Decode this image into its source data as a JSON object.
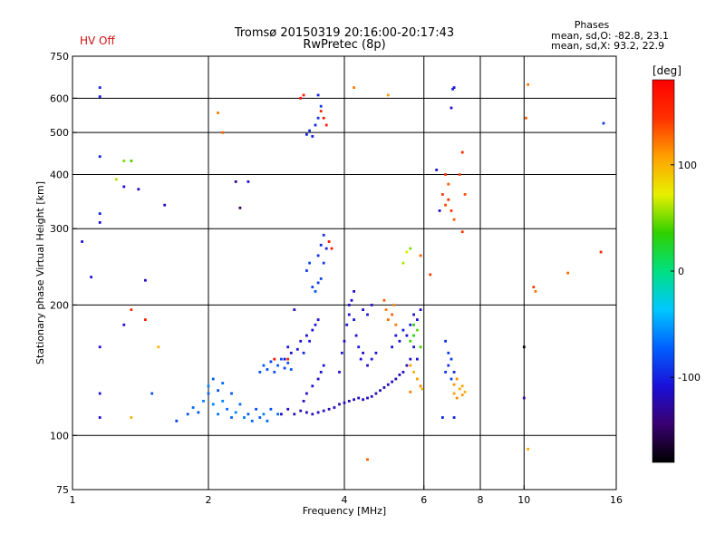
{
  "chart_data": {
    "type": "scatter",
    "title": "Tromsø 20150319 20:16:00-20:17:43",
    "subtitle": "RwPretec (8p)",
    "status": "HV Off",
    "xlabel": "Frequency [MHz]",
    "ylabel": "Stationary phase Virtual Height [km]",
    "x_scale": "log",
    "y_scale": "log",
    "xlim": [
      1,
      16
    ],
    "ylim": [
      75,
      750
    ],
    "x_ticks": [
      1,
      2,
      4,
      6,
      8,
      10,
      16
    ],
    "x_tick_labels": [
      "1",
      "2",
      "4",
      "6",
      "8",
      "10",
      "16"
    ],
    "x_grid": [
      2,
      4,
      6,
      8,
      10
    ],
    "y_ticks": [
      75,
      100,
      200,
      300,
      400,
      500,
      600,
      750
    ],
    "y_tick_labels": [
      "75",
      "100",
      "200",
      "300",
      "400",
      "500",
      "600",
      "750"
    ],
    "y_grid": [
      100,
      200,
      300,
      400,
      500,
      600
    ],
    "grid": true,
    "stats": {
      "heading": "Phases",
      "o_line": "mean, sd,O: -82.8, 23.1",
      "x_line": "mean, sd,X: 93.2, 22.9"
    },
    "colorbar": {
      "unit": "[deg]",
      "range": [
        -180,
        180
      ],
      "ticks": [
        100,
        0,
        -100
      ],
      "tick_labels": [
        "100",
        "0",
        "-100"
      ],
      "colors": [
        "#000000",
        "#3a0070",
        "#1a10d8",
        "#0060ff",
        "#00c8ff",
        "#00e080",
        "#30d000",
        "#e8f000",
        "#ffa000",
        "#ff3000",
        "#ff0000"
      ]
    },
    "series": [
      {
        "points": [
          [
            1.1,
            232,
            -105
          ],
          [
            1.15,
            635,
            -100
          ],
          [
            1.15,
            605,
            -105
          ],
          [
            1.15,
            440,
            -100
          ],
          [
            1.15,
            325,
            -100
          ],
          [
            1.15,
            310,
            -110
          ],
          [
            1.15,
            160,
            -110
          ],
          [
            1.15,
            125,
            -110
          ],
          [
            1.15,
            110,
            -110
          ],
          [
            1.3,
            180,
            -110
          ],
          [
            1.3,
            375,
            -110
          ],
          [
            1.4,
            370,
            -110
          ],
          [
            1.45,
            228,
            -115
          ],
          [
            1.05,
            280,
            -110
          ],
          [
            1.95,
            120,
            -60
          ],
          [
            2.0,
            125,
            -70
          ],
          [
            2.0,
            130,
            -60
          ],
          [
            2.05,
            118,
            -60
          ],
          [
            2.05,
            135,
            -75
          ],
          [
            2.1,
            112,
            -65
          ],
          [
            2.1,
            127,
            -80
          ],
          [
            2.15,
            120,
            -60
          ],
          [
            2.15,
            132,
            -70
          ],
          [
            2.2,
            115,
            -65
          ],
          [
            2.25,
            110,
            -70
          ],
          [
            2.25,
            125,
            -80
          ],
          [
            2.3,
            113,
            -60
          ],
          [
            2.35,
            118,
            -70
          ],
          [
            2.4,
            110,
            -65
          ],
          [
            2.45,
            112,
            -75
          ],
          [
            2.5,
            108,
            -70
          ],
          [
            2.55,
            115,
            -80
          ],
          [
            2.6,
            110,
            -75
          ],
          [
            2.65,
            112,
            -60
          ],
          [
            2.7,
            108,
            -70
          ],
          [
            2.75,
            115,
            -80
          ],
          [
            2.85,
            112,
            -70
          ],
          [
            1.8,
            112,
            -80
          ],
          [
            1.85,
            116,
            -70
          ],
          [
            1.9,
            113,
            -80
          ],
          [
            1.7,
            108,
            -90
          ],
          [
            2.6,
            140,
            -80
          ],
          [
            2.65,
            145,
            -75
          ],
          [
            2.7,
            142,
            -80
          ],
          [
            2.75,
            148,
            -85
          ],
          [
            2.8,
            140,
            -80
          ],
          [
            2.85,
            145,
            -75
          ],
          [
            2.9,
            150,
            -80
          ],
          [
            2.95,
            143,
            -85
          ],
          [
            3.0,
            147,
            -80
          ],
          [
            3.05,
            142,
            -75
          ],
          [
            2.9,
            112,
            -120
          ],
          [
            3.0,
            115,
            -115
          ],
          [
            3.1,
            112,
            -120
          ],
          [
            3.2,
            114,
            -115
          ],
          [
            3.3,
            113,
            -120
          ],
          [
            3.4,
            112,
            -115
          ],
          [
            3.5,
            113,
            -120
          ],
          [
            3.6,
            114,
            -115
          ],
          [
            3.7,
            115,
            -120
          ],
          [
            3.8,
            116,
            -115
          ],
          [
            3.9,
            118,
            -120
          ],
          [
            4.0,
            119,
            -115
          ],
          [
            4.1,
            120,
            -120
          ],
          [
            4.2,
            121,
            -115
          ],
          [
            4.3,
            122,
            -120
          ],
          [
            4.4,
            121,
            -115
          ],
          [
            4.5,
            122,
            -120
          ],
          [
            4.6,
            123,
            -115
          ],
          [
            4.7,
            125,
            -120
          ],
          [
            4.8,
            127,
            -115
          ],
          [
            4.9,
            129,
            -120
          ],
          [
            5.0,
            131,
            -115
          ],
          [
            5.1,
            133,
            -120
          ],
          [
            5.2,
            135,
            -115
          ],
          [
            5.3,
            138,
            -120
          ],
          [
            5.4,
            140,
            -115
          ],
          [
            5.5,
            145,
            -120
          ],
          [
            5.6,
            150,
            -115
          ],
          [
            2.95,
            150,
            -110
          ],
          [
            3.0,
            160,
            -105
          ],
          [
            3.05,
            155,
            -110
          ],
          [
            3.15,
            158,
            -105
          ],
          [
            3.2,
            165,
            -110
          ],
          [
            3.25,
            155,
            -100
          ],
          [
            3.3,
            170,
            -110
          ],
          [
            3.35,
            165,
            -105
          ],
          [
            3.4,
            175,
            -110
          ],
          [
            3.45,
            180,
            -105
          ],
          [
            3.5,
            185,
            -110
          ],
          [
            3.3,
            125,
            -115
          ],
          [
            3.4,
            130,
            -110
          ],
          [
            3.5,
            135,
            -115
          ],
          [
            3.55,
            140,
            -110
          ],
          [
            3.6,
            145,
            -105
          ],
          [
            3.25,
            120,
            -115
          ],
          [
            3.1,
            195,
            -115
          ],
          [
            3.3,
            240,
            -90
          ],
          [
            3.35,
            250,
            -80
          ],
          [
            3.4,
            220,
            -85
          ],
          [
            3.45,
            215,
            -80
          ],
          [
            3.5,
            225,
            -90
          ],
          [
            3.55,
            230,
            -85
          ],
          [
            3.5,
            260,
            -95
          ],
          [
            3.55,
            275,
            -100
          ],
          [
            3.6,
            290,
            -95
          ],
          [
            3.65,
            270,
            -100
          ],
          [
            3.6,
            250,
            -90
          ],
          [
            3.9,
            140,
            -110
          ],
          [
            3.95,
            155,
            -105
          ],
          [
            4.0,
            165,
            -110
          ],
          [
            4.05,
            180,
            -105
          ],
          [
            4.1,
            190,
            -110
          ],
          [
            4.1,
            200,
            -115
          ],
          [
            4.15,
            205,
            -110
          ],
          [
            4.2,
            215,
            -115
          ],
          [
            4.2,
            185,
            -105
          ],
          [
            4.25,
            170,
            -110
          ],
          [
            4.3,
            160,
            -105
          ],
          [
            4.35,
            150,
            -110
          ],
          [
            4.4,
            155,
            -115
          ],
          [
            4.5,
            145,
            -110
          ],
          [
            4.6,
            150,
            -105
          ],
          [
            4.7,
            155,
            -110
          ],
          [
            4.4,
            195,
            -110
          ],
          [
            4.5,
            190,
            -105
          ],
          [
            4.6,
            200,
            -110
          ],
          [
            5.1,
            160,
            -110
          ],
          [
            5.2,
            170,
            -105
          ],
          [
            5.3,
            165,
            -110
          ],
          [
            5.4,
            175,
            -105
          ],
          [
            5.5,
            170,
            -110
          ],
          [
            5.6,
            180,
            -105
          ],
          [
            5.7,
            190,
            -110
          ],
          [
            5.8,
            185,
            -105
          ],
          [
            5.9,
            195,
            -110
          ],
          [
            5.7,
            160,
            -105
          ],
          [
            5.8,
            150,
            -110
          ],
          [
            6.7,
            140,
            -90
          ],
          [
            6.8,
            145,
            -95
          ],
          [
            6.9,
            150,
            -90
          ],
          [
            7.0,
            140,
            -95
          ],
          [
            6.8,
            155,
            -90
          ],
          [
            6.9,
            135,
            -85
          ],
          [
            6.7,
            165,
            -95
          ],
          [
            6.6,
            110,
            -100
          ],
          [
            7.0,
            110,
            -100
          ],
          [
            3.3,
            495,
            -100
          ],
          [
            3.35,
            505,
            -95
          ],
          [
            3.4,
            490,
            -100
          ],
          [
            3.45,
            520,
            -100
          ],
          [
            3.5,
            540,
            -95
          ],
          [
            3.55,
            575,
            -90
          ],
          [
            3.5,
            610,
            -100
          ],
          [
            6.9,
            570,
            -110
          ],
          [
            6.95,
            630,
            -100
          ],
          [
            7.0,
            635,
            -105
          ],
          [
            6.4,
            410,
            -110
          ],
          [
            6.5,
            330,
            -110
          ],
          [
            10.0,
            160,
            -180
          ],
          [
            10.0,
            122,
            -130
          ],
          [
            2.3,
            385,
            -140
          ],
          [
            2.35,
            335,
            -150
          ],
          [
            2.45,
            385,
            -110
          ],
          [
            1.6,
            340,
            -110
          ],
          [
            4.9,
            205,
            130
          ],
          [
            4.95,
            195,
            120
          ],
          [
            5.0,
            185,
            125
          ],
          [
            5.1,
            190,
            130
          ],
          [
            5.2,
            180,
            120
          ],
          [
            5.15,
            200,
            115
          ],
          [
            5.6,
            145,
            110
          ],
          [
            5.7,
            140,
            100
          ],
          [
            5.8,
            135,
            110
          ],
          [
            5.9,
            130,
            115
          ],
          [
            5.95,
            128,
            100
          ],
          [
            5.6,
            126,
            120
          ],
          [
            7.0,
            125,
            110
          ],
          [
            7.1,
            122,
            115
          ],
          [
            7.2,
            128,
            105
          ],
          [
            7.3,
            124,
            110
          ],
          [
            7.4,
            126,
            100
          ],
          [
            7.1,
            135,
            115
          ],
          [
            7.3,
            130,
            105
          ],
          [
            7.0,
            131,
            110
          ],
          [
            5.6,
            165,
            40
          ],
          [
            5.7,
            170,
            30
          ],
          [
            5.8,
            175,
            45
          ],
          [
            5.9,
            160,
            40
          ],
          [
            5.7,
            180,
            35
          ],
          [
            5.4,
            250,
            60
          ],
          [
            5.5,
            265,
            70
          ],
          [
            5.6,
            270,
            50
          ],
          [
            4.5,
            88,
            130
          ],
          [
            4.2,
            635,
            120
          ],
          [
            5.0,
            610,
            110
          ],
          [
            5.9,
            260,
            130
          ],
          [
            6.2,
            235,
            140
          ],
          [
            6.6,
            360,
            140
          ],
          [
            6.7,
            340,
            135
          ],
          [
            6.8,
            350,
            145
          ],
          [
            6.9,
            330,
            140
          ],
          [
            7.0,
            315,
            130
          ],
          [
            7.2,
            400,
            140
          ],
          [
            7.3,
            450,
            150
          ],
          [
            7.4,
            360,
            135
          ],
          [
            6.7,
            400,
            145
          ],
          [
            6.8,
            380,
            130
          ],
          [
            7.3,
            295,
            145
          ],
          [
            3.2,
            600,
            170
          ],
          [
            3.25,
            610,
            160
          ],
          [
            3.55,
            560,
            150
          ],
          [
            3.6,
            540,
            160
          ],
          [
            3.65,
            520,
            155
          ],
          [
            3.7,
            280,
            165
          ],
          [
            3.75,
            270,
            160
          ],
          [
            2.1,
            555,
            120
          ],
          [
            2.15,
            500,
            130
          ],
          [
            10.1,
            540,
            130
          ],
          [
            10.2,
            645,
            120
          ],
          [
            10.5,
            220,
            140
          ],
          [
            10.6,
            215,
            120
          ],
          [
            10.2,
            93,
            100
          ],
          [
            12.5,
            237,
            125
          ],
          [
            14.8,
            265,
            155
          ],
          [
            15.0,
            525,
            -90
          ],
          [
            1.55,
            160,
            100
          ],
          [
            1.3,
            430,
            50
          ],
          [
            1.35,
            430,
            40
          ],
          [
            1.25,
            390,
            60
          ],
          [
            1.35,
            110,
            100
          ],
          [
            2.8,
            150,
            170
          ],
          [
            3.0,
            150,
            150
          ],
          [
            1.45,
            185,
            160
          ],
          [
            1.35,
            195,
            150
          ],
          [
            1.5,
            125,
            -80
          ]
        ]
      }
    ]
  }
}
